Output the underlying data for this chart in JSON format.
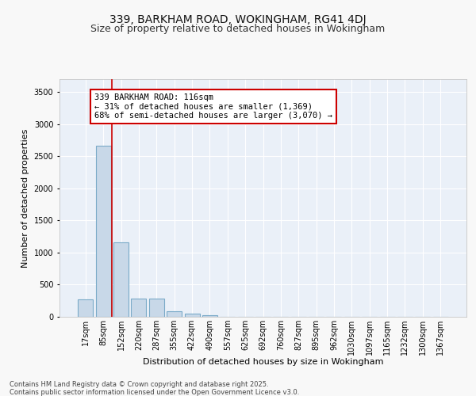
{
  "title_line1": "339, BARKHAM ROAD, WOKINGHAM, RG41 4DJ",
  "title_line2": "Size of property relative to detached houses in Wokingham",
  "xlabel": "Distribution of detached houses by size in Wokingham",
  "ylabel": "Number of detached properties",
  "bar_color": "#c8d8e8",
  "bar_edgecolor": "#7aaac8",
  "bar_linewidth": 0.8,
  "annotation_text": "339 BARKHAM ROAD: 116sqm\n← 31% of detached houses are smaller (1,369)\n68% of semi-detached houses are larger (3,070) →",
  "annotation_box_color": "#ffffff",
  "annotation_box_edgecolor": "#cc0000",
  "redline_color": "#cc0000",
  "categories": [
    "17sqm",
    "85sqm",
    "152sqm",
    "220sqm",
    "287sqm",
    "355sqm",
    "422sqm",
    "490sqm",
    "557sqm",
    "625sqm",
    "692sqm",
    "760sqm",
    "827sqm",
    "895sqm",
    "962sqm",
    "1030sqm",
    "1097sqm",
    "1165sqm",
    "1232sqm",
    "1300sqm",
    "1367sqm"
  ],
  "values": [
    270,
    2660,
    1160,
    285,
    285,
    85,
    50,
    30,
    0,
    0,
    0,
    0,
    0,
    0,
    0,
    0,
    0,
    0,
    0,
    0,
    0
  ],
  "ylim": [
    0,
    3700
  ],
  "yticks": [
    0,
    500,
    1000,
    1500,
    2000,
    2500,
    3000,
    3500
  ],
  "background_color": "#eaf0f8",
  "grid_color": "#ffffff",
  "footer_line1": "Contains HM Land Registry data © Crown copyright and database right 2025.",
  "footer_line2": "Contains public sector information licensed under the Open Government Licence v3.0.",
  "title_fontsize": 10,
  "subtitle_fontsize": 9,
  "axis_label_fontsize": 8,
  "tick_fontsize": 7,
  "annotation_fontsize": 7.5,
  "footer_fontsize": 6
}
